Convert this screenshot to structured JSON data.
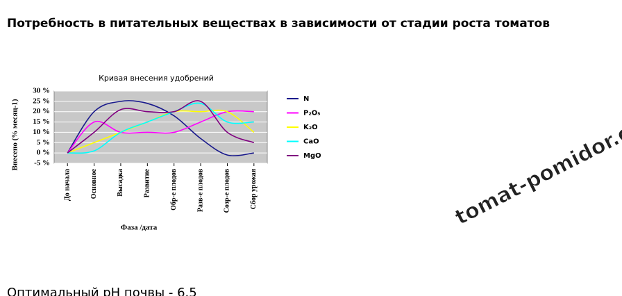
{
  "heading": "Потребность в питательных веществах в зависимости от стадии роста томатов",
  "footer_text": "Оптимальный pH почвы - 6.5",
  "watermark": "tomat-pomidor.com",
  "chart_data": {
    "type": "line",
    "title": "Кривая внесения удобрений",
    "y_label": "Внесено (% месяц-1)",
    "x_label": "Фаза /дата",
    "categories": [
      "До начала",
      "Основное",
      "Высадка",
      "Развитие",
      "Обр-е плодов",
      "Разв-е плодов",
      "Созр-е плодов",
      "Сбор урожая"
    ],
    "series": [
      {
        "name": "N",
        "color": "#1a1a8c",
        "values": [
          0,
          20,
          25,
          24,
          18,
          7,
          -1,
          0
        ]
      },
      {
        "name": "P₂O₅",
        "color": "#ff00ff",
        "values": [
          0,
          15,
          10,
          10,
          10,
          15,
          20,
          20
        ]
      },
      {
        "name": "K₂O",
        "color": "#ffff00",
        "values": [
          0,
          5,
          10,
          15,
          20,
          20,
          20,
          10
        ]
      },
      {
        "name": "CaO",
        "color": "#00ffff",
        "values": [
          0,
          1,
          10,
          15,
          20,
          24,
          15,
          15
        ]
      },
      {
        "name": "MgO",
        "color": "#800080",
        "values": [
          0,
          10,
          21,
          20,
          20,
          25,
          10,
          5
        ]
      }
    ],
    "ylim": [
      -5,
      30
    ],
    "yticks": [
      {
        "value": -5,
        "label": "-5 %"
      },
      {
        "value": 0,
        "label": "0 %"
      },
      {
        "value": 5,
        "label": "5 %"
      },
      {
        "value": 10,
        "label": "10 %"
      },
      {
        "value": 15,
        "label": "15 %"
      },
      {
        "value": 20,
        "label": "20 %"
      },
      {
        "value": 25,
        "label": "25 %"
      },
      {
        "value": 30,
        "label": "30 %"
      }
    ],
    "grid": true,
    "legend": "right"
  }
}
